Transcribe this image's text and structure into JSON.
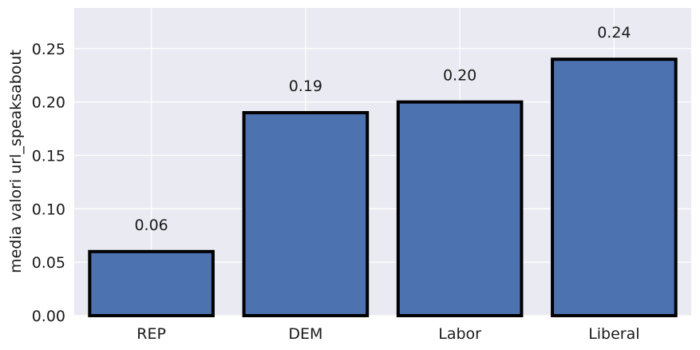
{
  "chart_data": {
    "type": "bar",
    "categories": [
      "REP",
      "DEM",
      "Labor",
      "Liberal"
    ],
    "values": [
      0.06,
      0.19,
      0.2,
      0.24
    ],
    "value_labels": [
      "0.06",
      "0.19",
      "0.20",
      "0.24"
    ],
    "title": "",
    "xlabel": "",
    "ylabel": "media valori url_speaksabout",
    "ylim": [
      0,
      0.288
    ],
    "yticks": [
      0.0,
      0.05,
      0.1,
      0.15,
      0.2,
      0.25
    ],
    "ytick_labels": [
      "0.00",
      "0.05",
      "0.10",
      "0.15",
      "0.20",
      "0.25"
    ],
    "grid": true,
    "legend": "none",
    "colors": {
      "bar_fill": "#4c72b0",
      "bar_edge": "#000000",
      "plot_background": "#eaeaf2",
      "grid": "#ffffff"
    }
  }
}
